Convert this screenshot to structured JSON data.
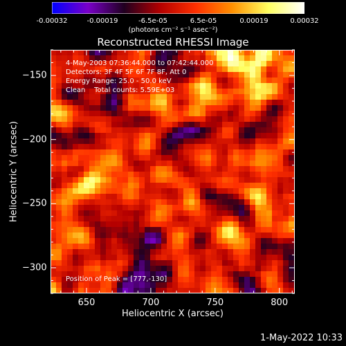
{
  "colorbar": {
    "ticks": [
      "-0.00032",
      "-0.00019",
      "-6.5e-05",
      "6.5e-05",
      "0.00019",
      "0.00032"
    ],
    "units": "(photons cm⁻² s⁻¹ asec⁻²)",
    "colors": [
      "#0000ff",
      "#7a00c8",
      "#200020",
      "#b40000",
      "#ff3000",
      "#ff9000",
      "#ffff60",
      "#ffffff"
    ]
  },
  "title": "Reconstructed RHESSI Image",
  "info": {
    "time_range": "4-May-2003 07:36:44.000 to 07:42:44.000",
    "detectors": "Detectors: 3F 4F 5F 6F 7F 8F, Att 0",
    "energy_range": "Energy Range: 25.0 - 50.0 keV",
    "method_counts": "Clean    Total counts: 5.59E+03",
    "peak": "Position of Peak = [777,-130]"
  },
  "axes": {
    "xlabel": "Heliocentric X (arcsec)",
    "ylabel": "Heliocentric Y (arcsec)",
    "xlim": [
      622,
      812
    ],
    "ylim": [
      -320,
      -130
    ],
    "xticks": [
      650,
      700,
      750,
      800
    ],
    "yticks": [
      -150,
      -200,
      -250,
      -300
    ]
  },
  "image_grid": {
    "cols": 44,
    "rows": 44,
    "peak_position": [
      777,
      -130
    ]
  },
  "timestamp": "1-May-2022 10:33"
}
